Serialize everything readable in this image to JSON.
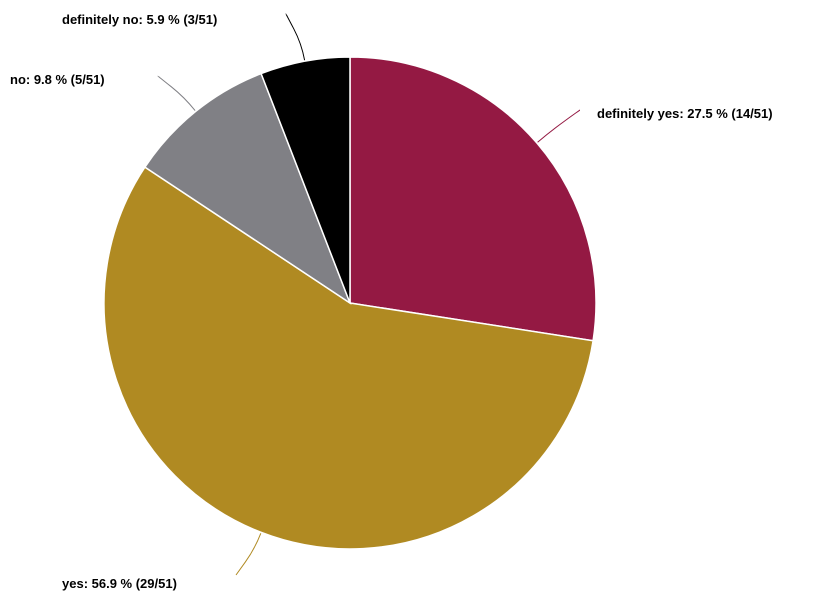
{
  "chart_data": {
    "type": "pie",
    "title": "",
    "total": 51,
    "slices": [
      {
        "category": "definitely yes",
        "count": 14,
        "percent": 27.5,
        "color": "#941943",
        "label": "definitely yes: 27.5 % (14/51)"
      },
      {
        "category": "yes",
        "count": 29,
        "percent": 56.9,
        "color": "#b08a22",
        "label": "yes: 56.9 % (29/51)"
      },
      {
        "category": "no",
        "count": 5,
        "percent": 9.8,
        "color": "#808085",
        "label": "no: 9.8 % (5/51)"
      },
      {
        "category": "definitely no",
        "count": 3,
        "percent": 5.9,
        "color": "#000000",
        "label": "definitely no: 5.9 % (3/51)"
      }
    ],
    "start": "12 o'clock",
    "direction": "clockwise"
  }
}
